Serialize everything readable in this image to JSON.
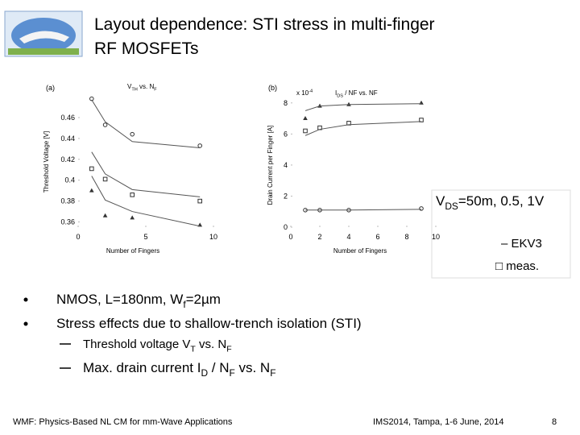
{
  "header": {
    "title_lines": [
      "Layout dependence: STI stress in multi-finger",
      "RF MOSFETs"
    ]
  },
  "chart_data": [
    {
      "type": "line",
      "panel_label": "(a)",
      "title": [
        {
          "text": "V"
        },
        {
          "text": "TH",
          "sub": true
        },
        {
          "text": " vs. N"
        },
        {
          "text": "F",
          "sub": true
        }
      ],
      "x_label": "Number of Fingers",
      "y_label": "Threshold Voltage [V]",
      "x": [
        1,
        2,
        4,
        9
      ],
      "xlim": [
        0,
        10
      ],
      "xticks": [
        0,
        5,
        10
      ],
      "ylim": [
        0.355,
        0.48
      ],
      "yticks": [
        0.36,
        0.38,
        0.4,
        0.42,
        0.44,
        0.46
      ],
      "series": [
        {
          "marker": "circle",
          "color": "#333333",
          "values": [
            0.478,
            0.453,
            0.444,
            0.433
          ]
        },
        {
          "marker": "square",
          "color": "#333333",
          "values": [
            0.411,
            0.401,
            0.386,
            0.38
          ]
        },
        {
          "marker": "triangle",
          "color": "#333333",
          "values": [
            0.39,
            0.366,
            0.364,
            0.357
          ]
        },
        {
          "marker": "line",
          "color": "#555555",
          "values": [
            0.477,
            0.456,
            0.437,
            0.431
          ]
        },
        {
          "marker": "line",
          "color": "#555555",
          "values": [
            0.427,
            0.406,
            0.391,
            0.384
          ]
        },
        {
          "marker": "line",
          "color": "#555555",
          "values": [
            0.404,
            0.381,
            0.37,
            0.356
          ]
        }
      ]
    },
    {
      "type": "line",
      "panel_label": "(b)",
      "multiplier": [
        {
          "text": "x 10"
        },
        {
          "text": "-4",
          "sup": true
        }
      ],
      "title": [
        {
          "text": "I"
        },
        {
          "text": "DS",
          "sub": true
        },
        {
          "text": " / NF vs. NF"
        }
      ],
      "x_label": "Number of Fingers",
      "y_label": "Drain Current per Finger [A]",
      "x": [
        1,
        2,
        4,
        9
      ],
      "xlim": [
        0,
        10
      ],
      "xticks": [
        0,
        2,
        4,
        6,
        8,
        10
      ],
      "ylim": [
        0,
        8.3
      ],
      "yticks": [
        0,
        2,
        4,
        6,
        8
      ],
      "series": [
        {
          "marker": "triangle",
          "color": "#333333",
          "values": [
            7.0,
            7.8,
            7.9,
            8.0
          ]
        },
        {
          "marker": "square",
          "color": "#333333",
          "values": [
            6.2,
            6.4,
            6.7,
            6.9
          ]
        },
        {
          "marker": "circle",
          "color": "#333333",
          "values": [
            1.1,
            1.1,
            1.1,
            1.2
          ]
        },
        {
          "marker": "line",
          "color": "#555555",
          "values": [
            7.5,
            7.8,
            7.9,
            7.95
          ]
        },
        {
          "marker": "line",
          "color": "#555555",
          "values": [
            5.9,
            6.3,
            6.6,
            6.8
          ]
        },
        {
          "marker": "line",
          "color": "#555555",
          "values": [
            1.1,
            1.1,
            1.1,
            1.15
          ]
        }
      ]
    }
  ],
  "legend_box": {
    "condition": [
      {
        "text": "V"
      },
      {
        "text": "DS",
        "sub": true
      },
      {
        "text": "=50m, 0.5, 1V"
      }
    ],
    "items": [
      "– EKV3",
      "□ meas."
    ]
  },
  "bullets": [
    [
      {
        "text": "NMOS, L=180nm, W"
      },
      {
        "text": "f",
        "sub": true
      },
      {
        "text": "=2µm"
      }
    ],
    [
      {
        "text": "Stress effects due to shallow-trench isolation (STI)"
      }
    ]
  ],
  "sub_bullets": [
    [
      {
        "text": "Threshold voltage V"
      },
      {
        "text": "T",
        "sub": true
      },
      {
        "text": " vs. N"
      },
      {
        "text": "F",
        "sub": true
      }
    ],
    [
      {
        "text": "Max. drain current I"
      },
      {
        "text": "D",
        "sub": true
      },
      {
        "text": " / N"
      },
      {
        "text": "F",
        "sub": true
      },
      {
        "text": " vs. N"
      },
      {
        "text": "F",
        "sub": true
      }
    ]
  ],
  "footer": {
    "left": "WMF: Physics-Based NL CM for mm-Wave Applications",
    "center": "IMS2014, Tampa, 1-6 June, 2014",
    "page": "8"
  }
}
